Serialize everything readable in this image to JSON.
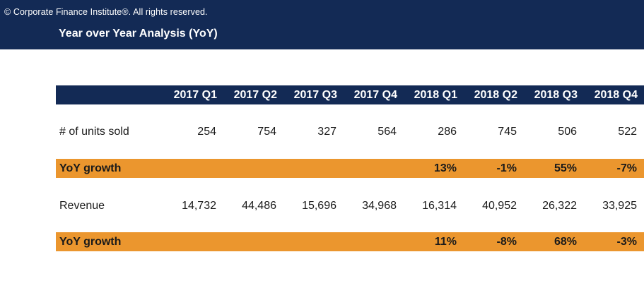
{
  "banner": {
    "copyright": "© Corporate Finance Institute®. All rights reserved.",
    "title": "Year over Year Analysis (YoY)"
  },
  "table": {
    "columns": [
      "2017 Q1",
      "2017 Q2",
      "2017 Q3",
      "2017 Q4",
      "2018 Q1",
      "2018 Q2",
      "2018 Q3",
      "2018 Q4"
    ],
    "rows": [
      {
        "label": "# of units sold",
        "values": [
          "254",
          "754",
          "327",
          "564",
          "286",
          "745",
          "506",
          "522"
        ]
      },
      {
        "label": "YoY growth",
        "values": [
          "",
          "",
          "",
          "",
          "13%",
          "-1%",
          "55%",
          "-7%"
        ]
      },
      {
        "label": "Revenue",
        "values": [
          "14,732",
          "44,486",
          "15,696",
          "34,968",
          "16,314",
          "40,952",
          "26,322",
          "33,925"
        ]
      },
      {
        "label": "YoY growth",
        "values": [
          "",
          "",
          "",
          "",
          "11%",
          "-8%",
          "68%",
          "-3%"
        ]
      }
    ]
  },
  "colors": {
    "header_navy": "#132a55",
    "growth_orange": "#eb962e"
  }
}
